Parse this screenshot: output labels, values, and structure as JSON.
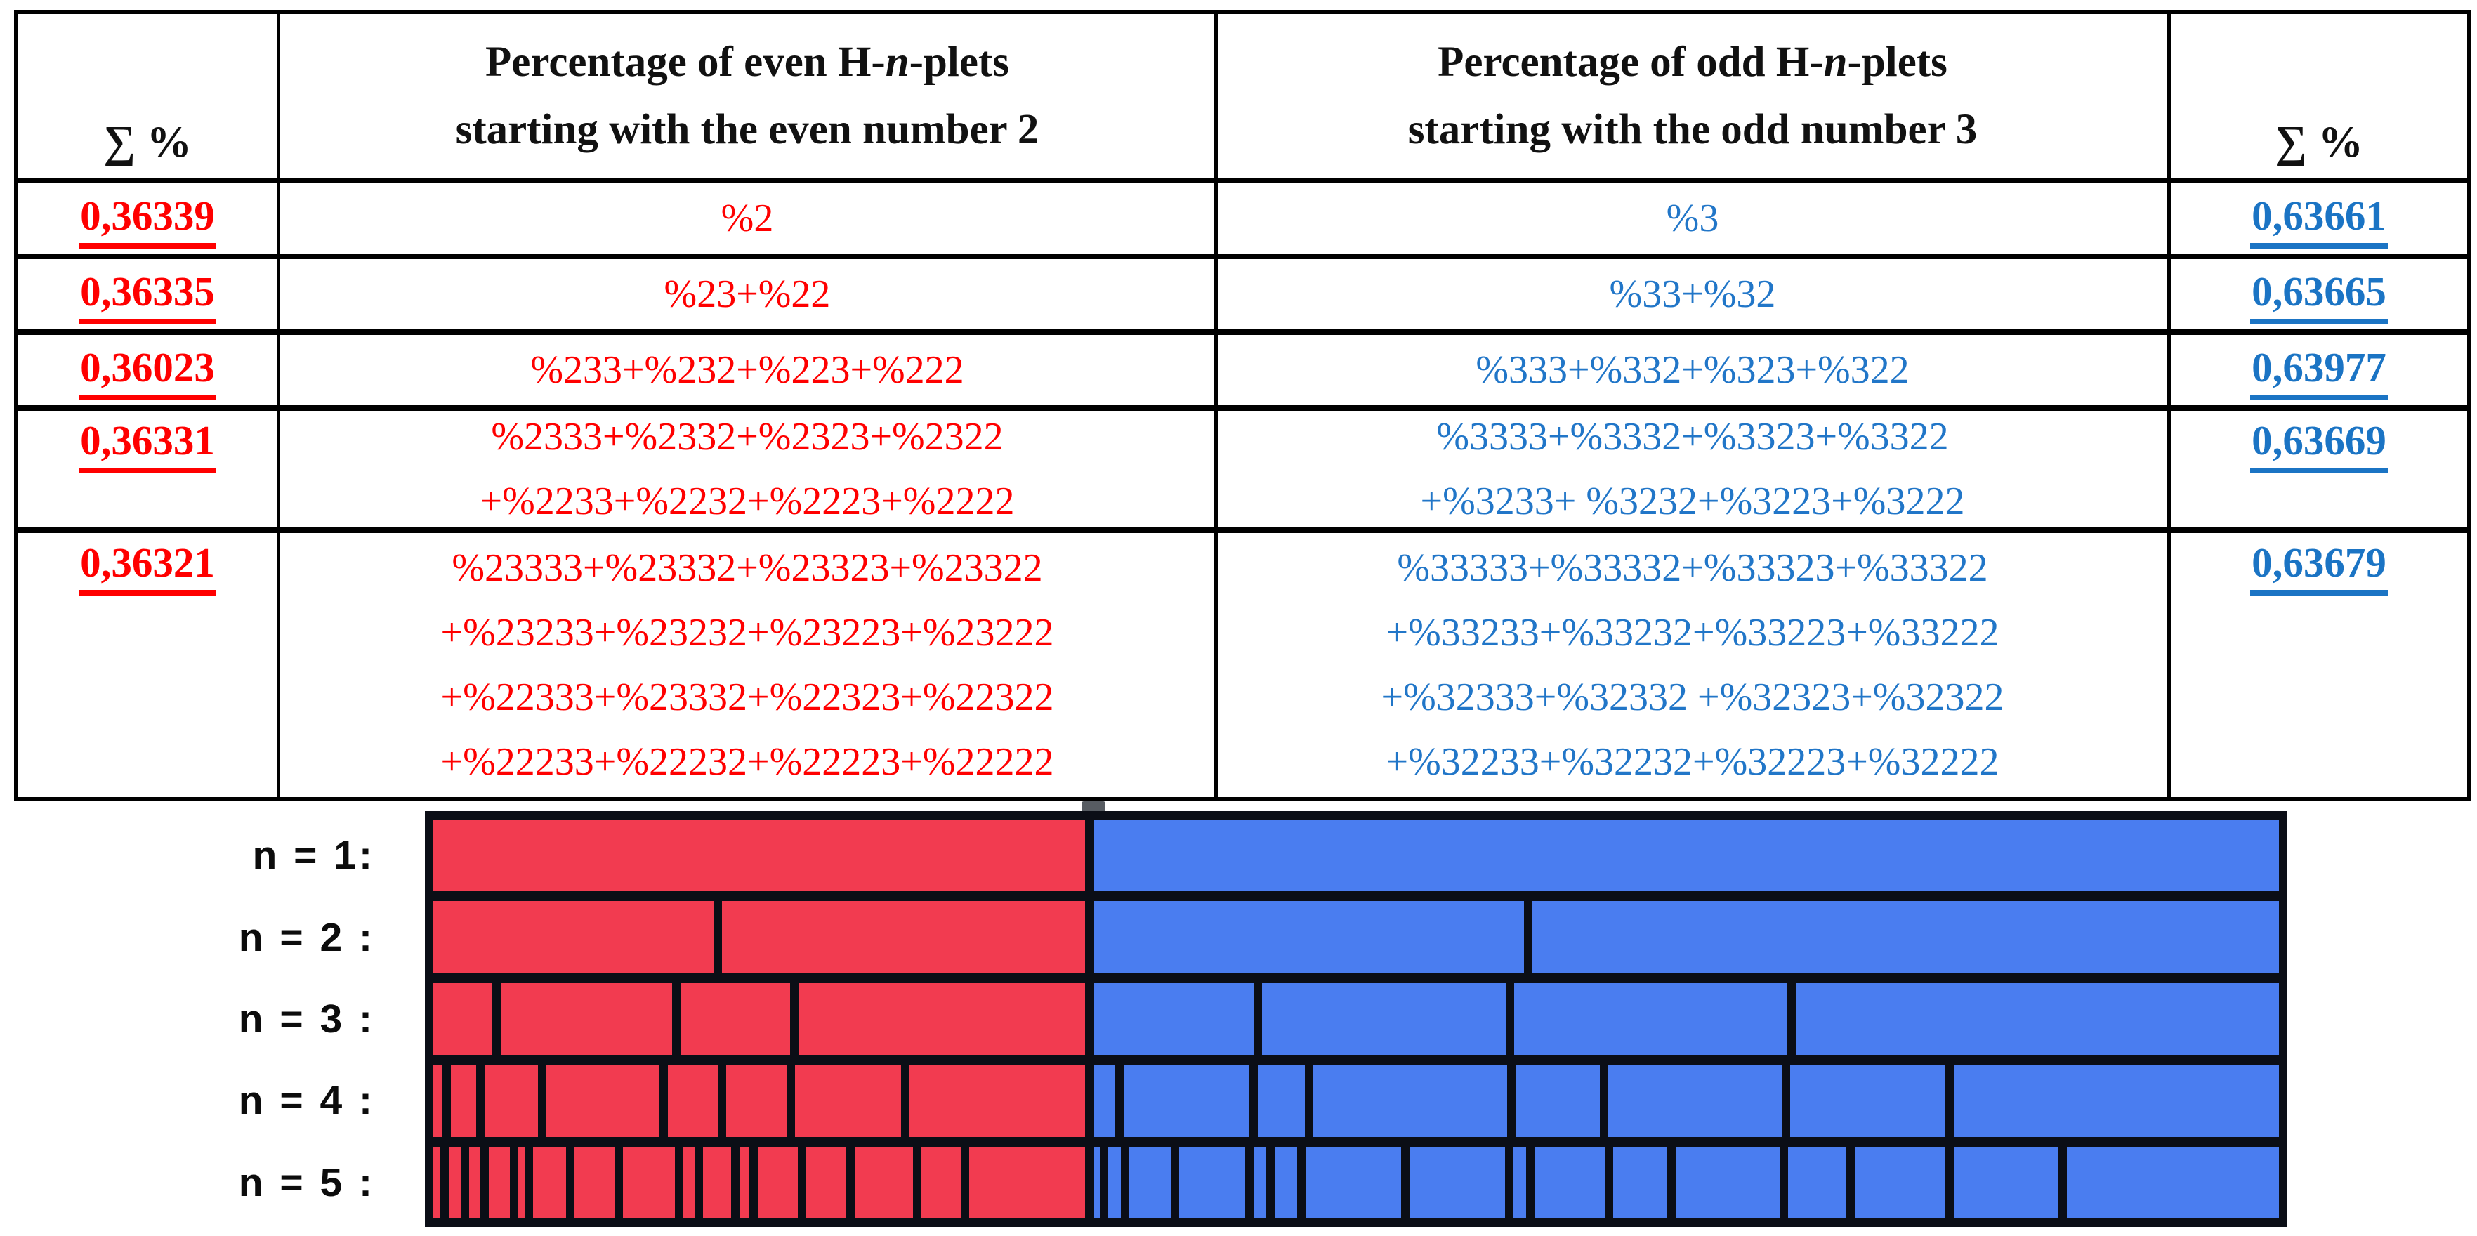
{
  "table": {
    "sum_header_left": "∑ %",
    "sum_header_right": "∑ %",
    "even_header": {
      "pre": "Percentage of even H-",
      "it": "n",
      "post": "-plets",
      "line2": "starting with the even number 2"
    },
    "odd_header": {
      "pre": "Percentage of odd H-",
      "it": "n",
      "post": "-plets",
      "line2": "starting with the odd number 3"
    },
    "rows": [
      {
        "sum_left": "0,36339",
        "even_lines": [
          "%2"
        ],
        "odd_lines": [
          "%3"
        ],
        "sum_right": "0,63661"
      },
      {
        "sum_left": "0,36335",
        "even_lines": [
          "%23+%22"
        ],
        "odd_lines": [
          "%33+%32"
        ],
        "sum_right": "0,63665"
      },
      {
        "sum_left": "0,36023",
        "even_lines": [
          "%233+%232+%223+%222"
        ],
        "odd_lines": [
          "%333+%332+%323+%322"
        ],
        "sum_right": "0,63977"
      },
      {
        "sum_left": "0,36331",
        "even_lines": [
          "%2333+%2332+%2323+%2322",
          "+%2233+%2232+%2223+%2222"
        ],
        "odd_lines": [
          "%3333+%3332+%3323+%3322",
          "+%3233+ %3232+%3223+%3222"
        ],
        "sum_right": "0,63669"
      },
      {
        "sum_left": "0,36321",
        "even_lines": [
          "%23333+%23332+%23323+%23322",
          "+%23233+%23232+%23223+%23222",
          "+%22333+%23332+%22323+%22322",
          "+%22233+%22232+%22223+%22222"
        ],
        "odd_lines": [
          "%33333+%33332+%33323+%33322",
          "+%33233+%33232+%33223+%33222",
          "+%32333+%32332 +%32323+%32322",
          "+%32233+%32232+%32223+%32222"
        ],
        "sum_right": "0,63679"
      }
    ]
  },
  "chart_data": {
    "type": "mosaic",
    "title": "",
    "xlabel": "",
    "ylabel": "",
    "description": "Stacked proportional bars: for each n, red segments are even H-n-plets starting with 2 (total share ~0.363), blue segments are odd H-n-plets starting with 3 (total share ~0.637). Segment widths are relative units measured from the figure.",
    "red_total_share": [
      0.36339,
      0.36335,
      0.36023,
      0.36331,
      0.36321
    ],
    "blue_total_share": [
      0.63661,
      0.63665,
      0.63977,
      0.63669,
      0.63679
    ],
    "colors": {
      "red": "#f23b50",
      "blue": "#4a7df0",
      "frame": "#0b0e16",
      "label": "#0c0c0c"
    },
    "rows": [
      {
        "label": "n = 1:",
        "red": [
          930
        ],
        "blue": [
          1690
        ]
      },
      {
        "label": "n = 2 :",
        "red": [
          394,
          511
        ],
        "blue": [
          610,
          1060
        ]
      },
      {
        "label": "n = 3 :",
        "red": [
          85,
          248,
          159,
          414
        ],
        "blue": [
          222,
          339,
          379,
          672
        ]
      },
      {
        "label": "n = 4 :",
        "red": [
          13,
          36,
          75,
          159,
          71,
          85,
          150,
          247
        ],
        "blue": [
          29,
          170,
          63,
          262,
          114,
          234,
          210,
          439
        ]
      },
      {
        "label": "n = 5 :",
        "red": [
          10,
          16,
          16,
          29,
          9,
          46,
          55,
          72,
          16,
          39,
          13,
          56,
          55,
          81,
          55,
          160
        ],
        "blue": [
          8,
          17,
          57,
          91,
          17,
          31,
          131,
          131,
          17,
          97,
          74,
          142,
          80,
          125,
          143,
          291
        ]
      }
    ]
  }
}
